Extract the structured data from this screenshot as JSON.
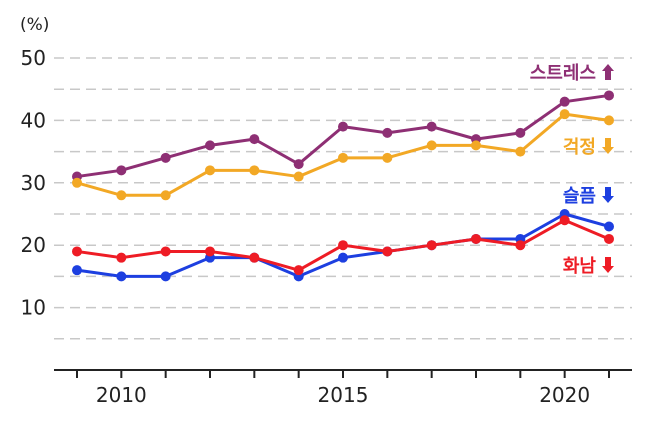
{
  "chart_data": {
    "type": "line",
    "ylabel": "(%)",
    "ylim": [
      0,
      50
    ],
    "yticks": [
      10,
      20,
      30,
      40,
      50
    ],
    "xlim": [
      2009,
      2021
    ],
    "xticks": [
      2010,
      2015,
      2020
    ],
    "x": [
      2009,
      2010,
      2011,
      2012,
      2013,
      2014,
      2015,
      2016,
      2017,
      2018,
      2019,
      2020,
      2021
    ],
    "grid": true,
    "legend_position": "right, next to line ends",
    "series": [
      {
        "name": "스트레스",
        "trend": "up",
        "color": "#8e2f74",
        "values": [
          31,
          32,
          34,
          36,
          37,
          33,
          39,
          38,
          39,
          37,
          38,
          43,
          44
        ]
      },
      {
        "name": "걱정",
        "trend": "down",
        "color": "#f2a825",
        "values": [
          30,
          28,
          28,
          32,
          32,
          31,
          34,
          34,
          36,
          36,
          35,
          41,
          40
        ]
      },
      {
        "name": "슬픔",
        "trend": "down",
        "color": "#1d3fe0",
        "values": [
          16,
          15,
          15,
          18,
          18,
          15,
          18,
          19,
          20,
          21,
          21,
          25,
          23
        ]
      },
      {
        "name": "화남",
        "trend": "down",
        "color": "#ee1c25",
        "values": [
          19,
          18,
          19,
          19,
          18,
          16,
          20,
          19,
          20,
          21,
          20,
          24,
          21
        ]
      }
    ]
  }
}
